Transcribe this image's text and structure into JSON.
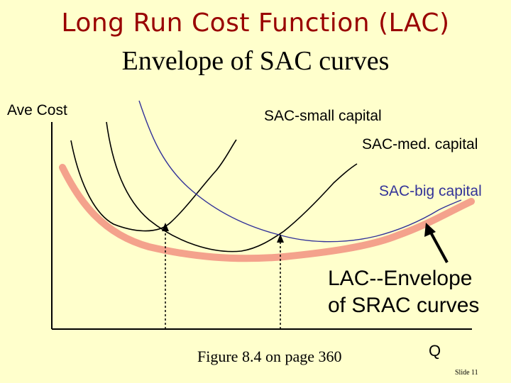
{
  "title": "Long Run Cost Function (LAC)",
  "subtitle": "Envelope of SAC curves",
  "colors": {
    "background": "#ffffcc",
    "title": "#990000",
    "sac_small": "#000000",
    "sac_med": "#000000",
    "sac_big": "#333399",
    "lac": "#f4a28c",
    "axis": "#000000"
  },
  "chart_data": {
    "type": "line",
    "ylabel": "Ave Cost",
    "xlabel": "Q",
    "ticks": "none",
    "series": [
      {
        "name": "SAC-small capital",
        "label": "SAC-small capital",
        "color": "#000000"
      },
      {
        "name": "SAC-med. capital",
        "label": "SAC-med. capital",
        "color": "#000000"
      },
      {
        "name": "SAC-big capital",
        "label": "SAC-big capital",
        "color": "#333399"
      },
      {
        "name": "LAC",
        "label": "LAC--Envelope of SRAC curves",
        "color": "#f4a28c"
      }
    ],
    "annotations": {
      "lac_line1": "LAC--Envelope",
      "lac_line2": "of SRAC curves",
      "tangency_guides": 2
    }
  },
  "caption": "Figure 8.4 on page 360",
  "slide_number": "Slide 11"
}
